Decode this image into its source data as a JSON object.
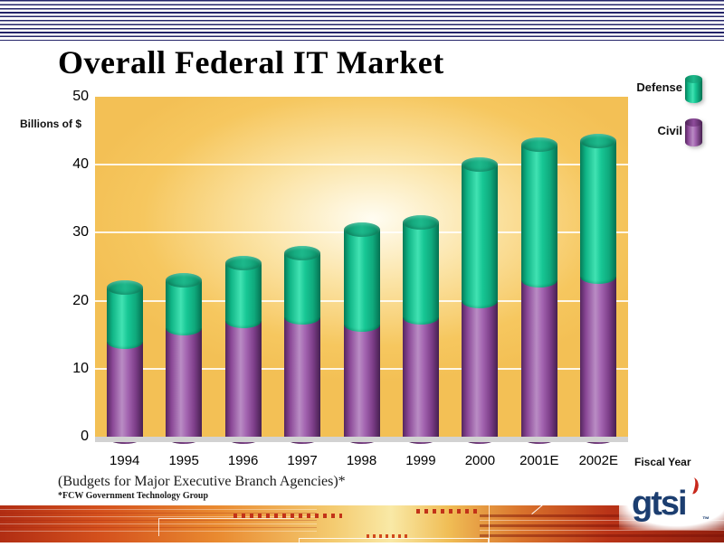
{
  "slide": {
    "title": "Overall Federal IT Market",
    "footnote": "(Budgets for Major Executive Branch Agencies)*",
    "source_note": "*FCW Government Technology Group",
    "logo_text": "gtsi",
    "logo_tm": "™"
  },
  "legend": {
    "defense_label": "Defense",
    "civil_label": "Civil"
  },
  "chart_data": {
    "type": "bar",
    "stacked": true,
    "title": "Overall Federal IT Market",
    "ylabel": "Billions of $",
    "xlabel": "Fiscal Year",
    "ylim": [
      0,
      50
    ],
    "yticks": [
      0,
      10,
      20,
      30,
      40,
      50
    ],
    "grid": true,
    "legend_position": "top-right",
    "plot_background": "#f6c75f",
    "categories": [
      "1994",
      "1995",
      "1996",
      "1997",
      "1998",
      "1999",
      "2000",
      "2001E",
      "2002E"
    ],
    "series": [
      {
        "name": "Civil",
        "color": "#9b59a8",
        "values": [
          14,
          16,
          17,
          17.5,
          16.5,
          17.5,
          20,
          23,
          23.5
        ]
      },
      {
        "name": "Defense",
        "color": "#10bf8c",
        "values": [
          8,
          7,
          8.5,
          9.5,
          14,
          14,
          20,
          20,
          20
        ]
      }
    ]
  },
  "colors": {
    "pinstripe_navy": "#232368",
    "plot_gold": "#f6c75f",
    "defense_teal": "#10bf8c",
    "civil_purple": "#9b59a8",
    "logo_navy": "#1c3e70",
    "band_red": "#b12d13"
  }
}
